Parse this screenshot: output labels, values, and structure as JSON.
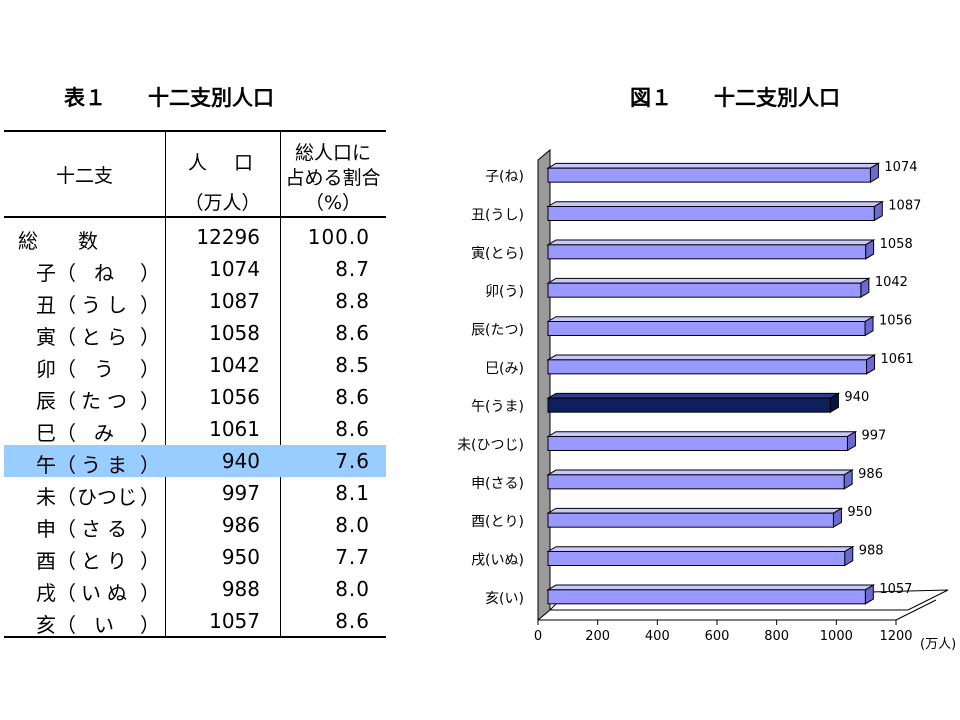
{
  "table": {
    "title": "表１　　十二支別人口",
    "headers": {
      "col1": "十二支",
      "col2_top": "人　口",
      "col2_bottom": "（万人）",
      "col3_line1": "総人口に",
      "col3_line2": "占める割合",
      "col3_line3": "（%）"
    },
    "total": {
      "label": "総　　数",
      "pop": "12296",
      "pct": "100.0"
    },
    "rows": [
      {
        "kanji": "子",
        "reading": "ね",
        "pop": "1074",
        "pct": "8.7"
      },
      {
        "kanji": "丑",
        "reading": "うし",
        "pop": "1087",
        "pct": "8.8"
      },
      {
        "kanji": "寅",
        "reading": "とら",
        "pop": "1058",
        "pct": "8.6"
      },
      {
        "kanji": "卯",
        "reading": "う",
        "pop": "1042",
        "pct": "8.5"
      },
      {
        "kanji": "辰",
        "reading": "たつ",
        "pop": "1056",
        "pct": "8.6"
      },
      {
        "kanji": "巳",
        "reading": "み",
        "pop": "1061",
        "pct": "8.6"
      },
      {
        "kanji": "午",
        "reading": "うま",
        "pop": "940",
        "pct": "7.6",
        "highlight": true
      },
      {
        "kanji": "未",
        "reading": "ひつじ",
        "pop": "997",
        "pct": "8.1"
      },
      {
        "kanji": "申",
        "reading": "さる",
        "pop": "986",
        "pct": "8.0"
      },
      {
        "kanji": "酉",
        "reading": "とり",
        "pop": "950",
        "pct": "7.7"
      },
      {
        "kanji": "戌",
        "reading": "いぬ",
        "pop": "988",
        "pct": "8.0"
      },
      {
        "kanji": "亥",
        "reading": "い",
        "pop": "1057",
        "pct": "8.6"
      }
    ],
    "highlight_color": "#99ccff"
  },
  "chart_data": {
    "type": "bar",
    "orientation": "horizontal",
    "title": "図１　　十二支別人口",
    "categories": [
      "子(ね)",
      "丑(うし)",
      "寅(とら)",
      "卯(う)",
      "辰(たつ)",
      "巳(み)",
      "午(うま)",
      "未(ひつじ)",
      "申(さる)",
      "酉(とり)",
      "戌(いぬ)",
      "亥(い)"
    ],
    "values": [
      1074,
      1087,
      1058,
      1042,
      1056,
      1061,
      940,
      997,
      986,
      950,
      988,
      1057
    ],
    "highlight_index": 6,
    "xlim": [
      0,
      1200
    ],
    "xticks": [
      "0",
      "200",
      "400",
      "600",
      "800",
      "1000",
      "1200"
    ],
    "xunit": "(万人)",
    "bar_color": "#9999ff",
    "highlight_color": "#0f1f5c",
    "grid": false,
    "legend": "none"
  }
}
